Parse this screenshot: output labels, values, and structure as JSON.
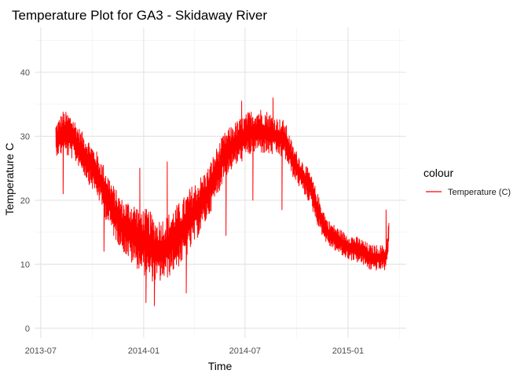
{
  "chart_data": {
    "type": "line",
    "title": "Temperature Plot for GA3 - Skidaway River",
    "xlabel": "Time",
    "ylabel": "Temperature C",
    "x_tick_labels": [
      "2013-07",
      "2014-01",
      "2014-07",
      "2015-01"
    ],
    "x_ticks": [
      "2013-07-01",
      "2014-01-01",
      "2014-07-01",
      "2015-01-01"
    ],
    "xlim": [
      "2013-06-20",
      "2015-04-15"
    ],
    "y_tick_labels": [
      "0",
      "10",
      "20",
      "30",
      "40"
    ],
    "y_ticks": [
      0,
      10,
      20,
      30,
      40
    ],
    "ylim": [
      -1.5,
      47
    ],
    "grid": true,
    "legend": {
      "title": "colour",
      "position": "right",
      "entries": [
        "Temperature (C)"
      ]
    },
    "series": [
      {
        "name": "Temperature (C)",
        "color": "#ff0000",
        "x": [
          "2013-07-28",
          "2013-08-10",
          "2013-08-25",
          "2013-09-10",
          "2013-09-25",
          "2013-10-10",
          "2013-10-25",
          "2013-11-10",
          "2013-11-25",
          "2013-12-10",
          "2013-12-25",
          "2014-01-10",
          "2014-01-25",
          "2014-02-10",
          "2014-02-25",
          "2014-03-10",
          "2014-03-25",
          "2014-04-10",
          "2014-04-25",
          "2014-05-10",
          "2014-05-25",
          "2014-06-10",
          "2014-06-25",
          "2014-07-10",
          "2014-07-25",
          "2014-08-10",
          "2014-08-25",
          "2014-09-10",
          "2014-09-25",
          "2014-10-10",
          "2014-10-25",
          "2014-11-10",
          "2014-11-25",
          "2014-12-10",
          "2014-12-25",
          "2015-01-10",
          "2015-01-25",
          "2015-02-10",
          "2015-02-25",
          "2015-03-10",
          "2015-03-15"
        ],
        "y": [
          29.5,
          30.5,
          30,
          28,
          26,
          24,
          21,
          18,
          16,
          15,
          14,
          13,
          12,
          12.5,
          14,
          15,
          17,
          19,
          21,
          24,
          27,
          28.5,
          29.5,
          30.5,
          31,
          30.5,
          30,
          29.5,
          26,
          24,
          22,
          18,
          15,
          14,
          13,
          12.5,
          12,
          11,
          11,
          11,
          15
        ]
      }
    ],
    "band_amplitude": [
      2.5,
      3.5,
      3.5,
      3,
      3.5,
      3.5,
      4,
      4,
      4,
      5,
      5,
      5.5,
      5,
      5,
      5,
      5,
      5,
      4.5,
      4,
      4,
      3.5,
      3.5,
      3.5,
      3.5,
      3.5,
      3.5,
      3,
      3,
      2.5,
      2.5,
      2.5,
      2.5,
      2,
      2,
      2,
      2,
      2,
      2,
      2,
      2,
      2
    ],
    "spikes": [
      {
        "x": "2013-08-10",
        "y": 21
      },
      {
        "x": "2013-10-22",
        "y": 12
      },
      {
        "x": "2013-12-25",
        "y": 25
      },
      {
        "x": "2014-01-05",
        "y": 4
      },
      {
        "x": "2014-01-20",
        "y": 3.5
      },
      {
        "x": "2014-02-12",
        "y": 26
      },
      {
        "x": "2014-03-18",
        "y": 5.5
      },
      {
        "x": "2014-05-28",
        "y": 14.5
      },
      {
        "x": "2014-06-25",
        "y": 35.5
      },
      {
        "x": "2014-07-15",
        "y": 20
      },
      {
        "x": "2014-08-20",
        "y": 36
      },
      {
        "x": "2014-09-05",
        "y": 18.5
      },
      {
        "x": "2015-03-10",
        "y": 18.5
      }
    ]
  }
}
